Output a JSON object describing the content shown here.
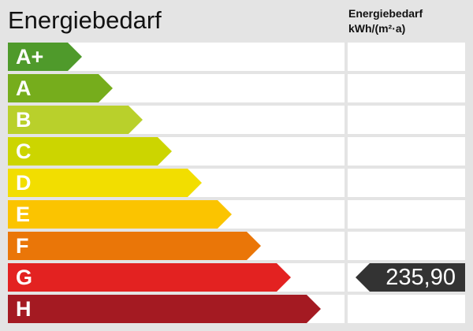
{
  "title": "Energiebedarf",
  "column_header": {
    "line1": "Energiebedarf",
    "line2": "kWh/(m²·a)"
  },
  "classes": [
    {
      "label": "A+",
      "color": "#4f9a2b"
    },
    {
      "label": "A",
      "color": "#76ad1c"
    },
    {
      "label": "B",
      "color": "#b9d02b"
    },
    {
      "label": "C",
      "color": "#ccd500"
    },
    {
      "label": "D",
      "color": "#f2de00"
    },
    {
      "label": "E",
      "color": "#fbc400"
    },
    {
      "label": "F",
      "color": "#ea7608"
    },
    {
      "label": "G",
      "color": "#e32221"
    },
    {
      "label": "H",
      "color": "#a41a22"
    }
  ],
  "current": {
    "class": "G",
    "value": "235,90",
    "color": "#333333"
  }
}
